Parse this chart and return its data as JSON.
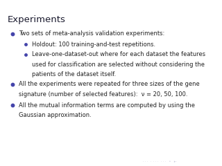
{
  "title": "Experiments",
  "header_bg_color": "#8888bb",
  "black_bar_color": "#111111",
  "slide_bg_color": "#ffffff",
  "bullet_color": "#4444aa",
  "text_color": "#222222",
  "nav_color": "#ccccdd",
  "bullets": [
    {
      "level": 0,
      "lines": [
        "Two sets of meta-analysis validation experiments:"
      ]
    },
    {
      "level": 1,
      "lines": [
        "Holdout: 100 training-and-test repetitions."
      ]
    },
    {
      "level": 1,
      "lines": [
        "Leave-one-dataset-out where for each dataset the features",
        "used for classification are selected without considering the",
        "patients of the dataset itself."
      ]
    },
    {
      "level": 0,
      "lines": [
        "All the experiments were repeated for three sizes of the gene",
        "signature (number of selected features):  ν = 20, 50, 100."
      ]
    },
    {
      "level": 0,
      "lines": [
        "All the mutual information terms are computed by using the",
        "Gaussian approximation."
      ]
    }
  ],
  "nav_text": "· · ·  ·  · · ·  · · ·   •   ▸·",
  "title_fontsize": 9.5,
  "text_fontsize": 6.0,
  "sub_text_fontsize": 6.0
}
